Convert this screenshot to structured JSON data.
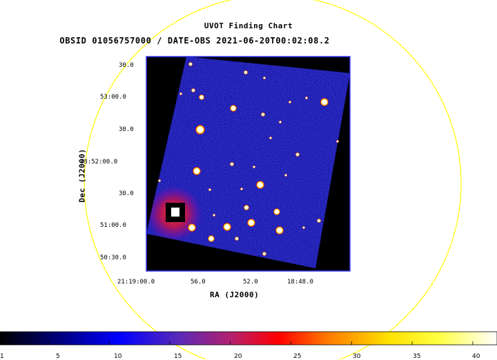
{
  "title": "UVOT Finding Chart",
  "subtitle": "OBSID 01056757000 / DATE-OBS 2021-06-20T00:02:08.2",
  "xlabel": "RA (J2000)",
  "ylabel": "Dec (J2000)",
  "dec_ticks": [
    "30.0",
    "53:00.0",
    "30.0",
    "33:52:00.0",
    "30.0",
    "51:00.0",
    "50:30.0"
  ],
  "ra_ticks": [
    "21:19:00.0",
    "56.0",
    "52.0",
    "18:48.0"
  ],
  "colorbar": {
    "ticks": [
      "1",
      "5",
      "10",
      "15",
      "20",
      "25",
      "30",
      "35",
      "40"
    ],
    "min": 1,
    "max": 42
  },
  "colors": {
    "circle": "#ffff00",
    "frame_border": "#3a3aff",
    "background": "#000000",
    "field_noise": "#1a1ab8"
  }
}
